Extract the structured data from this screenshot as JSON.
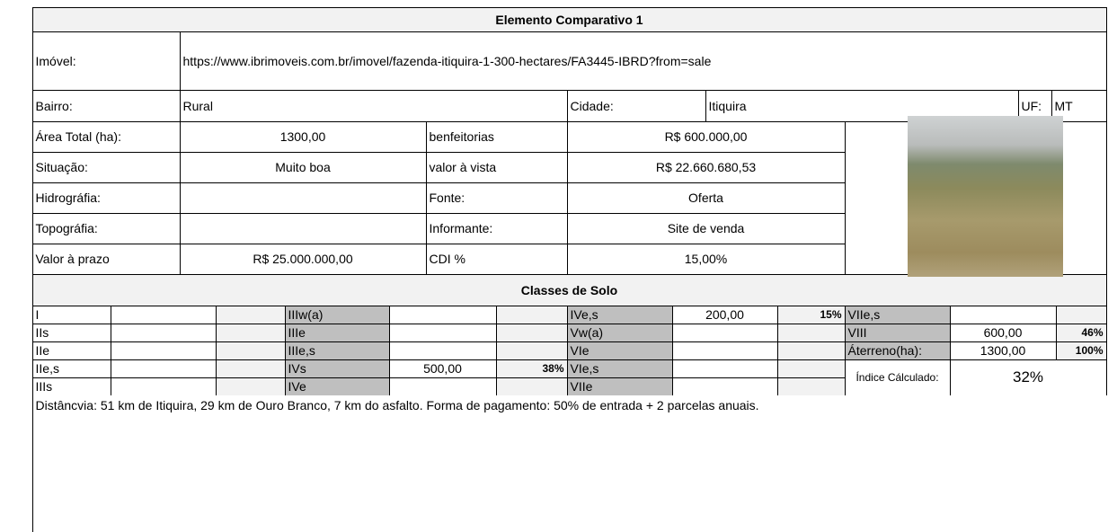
{
  "header": {
    "title": "Elemento Comparativo 1"
  },
  "info": {
    "rows": [
      [
        "Imóvel:",
        "https://www.ibrimoveis.com.br/imovel/fazenda-itiquira-1-300-hectares/FA3445-IBRD?from=sale"
      ],
      [
        "Bairro:",
        "Rural",
        "Cidade:",
        "Itiquira",
        "UF:",
        "MT"
      ],
      [
        "Área Total (ha):",
        "1300,00",
        "benfeitorias",
        "R$ 600.000,00"
      ],
      [
        "Situação:",
        "Muito boa",
        "valor à vista",
        "R$ 22.660.680,53"
      ],
      [
        "Hidrográfia:",
        null,
        "Fonte:",
        "Oferta"
      ],
      [
        "Topográfia:",
        null,
        "Informante:",
        "Site de venda"
      ],
      [
        "Valor à prazo",
        "R$ 25.000.000,00",
        "CDI %",
        "15,00%"
      ]
    ]
  },
  "soil": {
    "title": "Classes de Solo",
    "groups": [
      [
        {
          "class": "I"
        },
        {
          "class": "IIs"
        },
        {
          "class": "IIe"
        },
        {
          "class": "IIe,s"
        },
        {
          "class": "IIIs"
        }
      ],
      [
        {
          "class": "IIIw(a)"
        },
        {
          "class": "IIIe"
        },
        {
          "class": "IIIe,s"
        },
        {
          "class": "IVs",
          "area": "500,00",
          "share": "38%"
        },
        {
          "class": "IVe"
        }
      ],
      [
        {
          "class": "IVe,s",
          "area": "200,00",
          "share": "15%"
        },
        {
          "class": "Vw(a)"
        },
        {
          "class": "VIe"
        },
        {
          "class": "VIe,s"
        },
        {
          "class": "VIIe"
        }
      ],
      [
        {
          "class": "VIIe,s"
        },
        {
          "class": "VIII",
          "area": "600,00",
          "share": "46%"
        },
        {
          "class": "Áterreno(ha):",
          "area": "1300,00",
          "share": "100%"
        }
      ]
    ],
    "index_label": "Índice Cálculado:",
    "index_value": "32%"
  },
  "note": "Distâncvia: 51 km de Itiquira, 29 km de Ouro Branco, 7 km do asfalto. Forma de pagamento: 50% de entrada + 2 parcelas anuais."
}
